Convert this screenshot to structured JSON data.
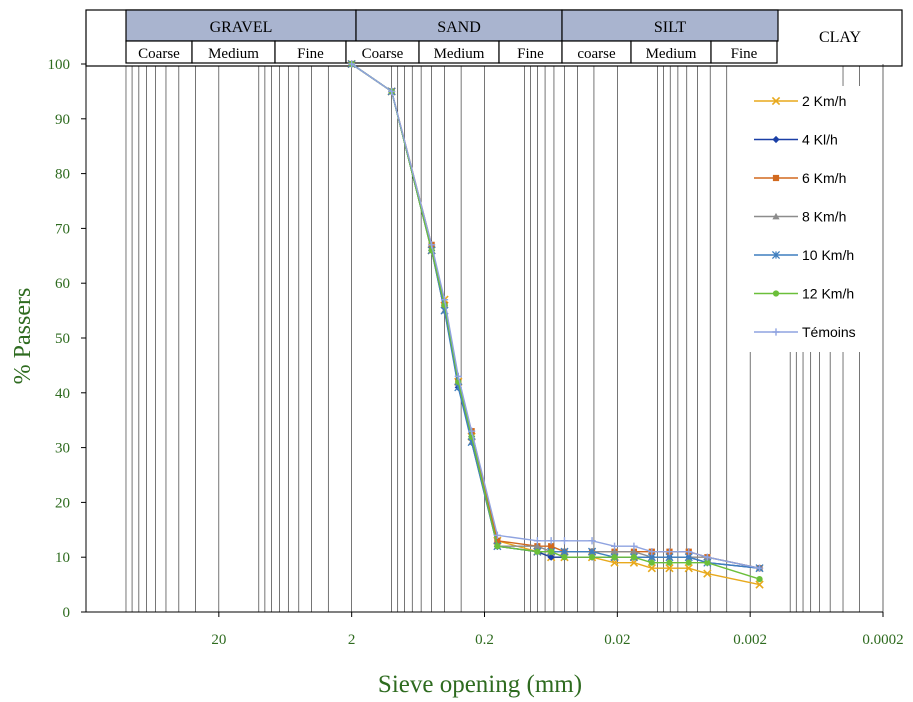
{
  "header": {
    "groups": [
      {
        "label": "GRAVEL",
        "subs": [
          "Coarse",
          "Medium",
          "Fine"
        ]
      },
      {
        "label": "SAND",
        "subs": [
          "Coarse",
          "Medium",
          "Fine"
        ]
      },
      {
        "label": "SILT",
        "subs": [
          "coarse",
          "Medium",
          "Fine"
        ]
      }
    ],
    "clay": "CLAY"
  },
  "chart_data": {
    "type": "line",
    "xlabel": "Sieve opening (mm)",
    "ylabel": "% Passers",
    "x_scale": "log",
    "x_reversed": true,
    "xlim": [
      200,
      0.0002
    ],
    "ylim": [
      0,
      100
    ],
    "x_ticks": [
      20,
      2,
      0.2,
      0.02,
      0.002,
      0.0002
    ],
    "x_tick_labels": [
      "20",
      "2",
      "0.2",
      "0.02",
      "0.002",
      "0.0002"
    ],
    "y_ticks": [
      0,
      10,
      20,
      30,
      40,
      50,
      60,
      70,
      80,
      90,
      100
    ],
    "grid": "vertical",
    "legend_position": "right",
    "x": [
      2,
      1,
      0.5,
      0.4,
      0.315,
      0.25,
      0.16,
      0.08,
      0.063,
      0.05,
      0.031,
      0.021,
      0.015,
      0.011,
      0.0081,
      0.0058,
      0.0042,
      0.0017
    ],
    "series": [
      {
        "name": "2 Km/h",
        "color": "#e8a91c",
        "marker": "x",
        "values": [
          100,
          95,
          66,
          57,
          42,
          32,
          13,
          11,
          10,
          10,
          10,
          9,
          9,
          8,
          8,
          8,
          7,
          5
        ]
      },
      {
        "name": "4 Kl/h",
        "color": "#1a3fa6",
        "marker": "diamond",
        "values": [
          100,
          95,
          66,
          56,
          41,
          32,
          12,
          11,
          10,
          10,
          10,
          10,
          10,
          10,
          10,
          10,
          9,
          8
        ]
      },
      {
        "name": "6 Km/h",
        "color": "#d2691e",
        "marker": "square",
        "values": [
          100,
          95,
          67,
          56,
          42,
          33,
          13,
          12,
          12,
          11,
          11,
          11,
          11,
          11,
          11,
          11,
          10,
          8
        ]
      },
      {
        "name": "8 Km/h",
        "color": "#8c8c8c",
        "marker": "triangle",
        "values": [
          100,
          95,
          66,
          55,
          42,
          31,
          12,
          12,
          11,
          11,
          11,
          11,
          11,
          10,
          10,
          10,
          10,
          8
        ]
      },
      {
        "name": "10 Km/h",
        "color": "#3f7fbf",
        "marker": "star",
        "values": [
          100,
          95,
          66,
          55,
          41,
          31,
          12,
          11,
          11,
          11,
          11,
          10,
          10,
          10,
          10,
          10,
          9,
          8
        ]
      },
      {
        "name": "12 Km/h",
        "color": "#6bbf3a",
        "marker": "circle",
        "values": [
          100,
          95,
          66,
          56,
          42,
          32,
          12,
          11,
          11,
          10,
          10,
          10,
          10,
          9,
          9,
          9,
          9,
          6
        ]
      },
      {
        "name": "Témoins",
        "color": "#8fa3e0",
        "marker": "plus",
        "values": [
          100,
          95,
          67,
          57,
          43,
          33,
          14,
          13,
          13,
          13,
          13,
          12,
          12,
          11,
          11,
          11,
          10,
          8
        ]
      }
    ]
  }
}
